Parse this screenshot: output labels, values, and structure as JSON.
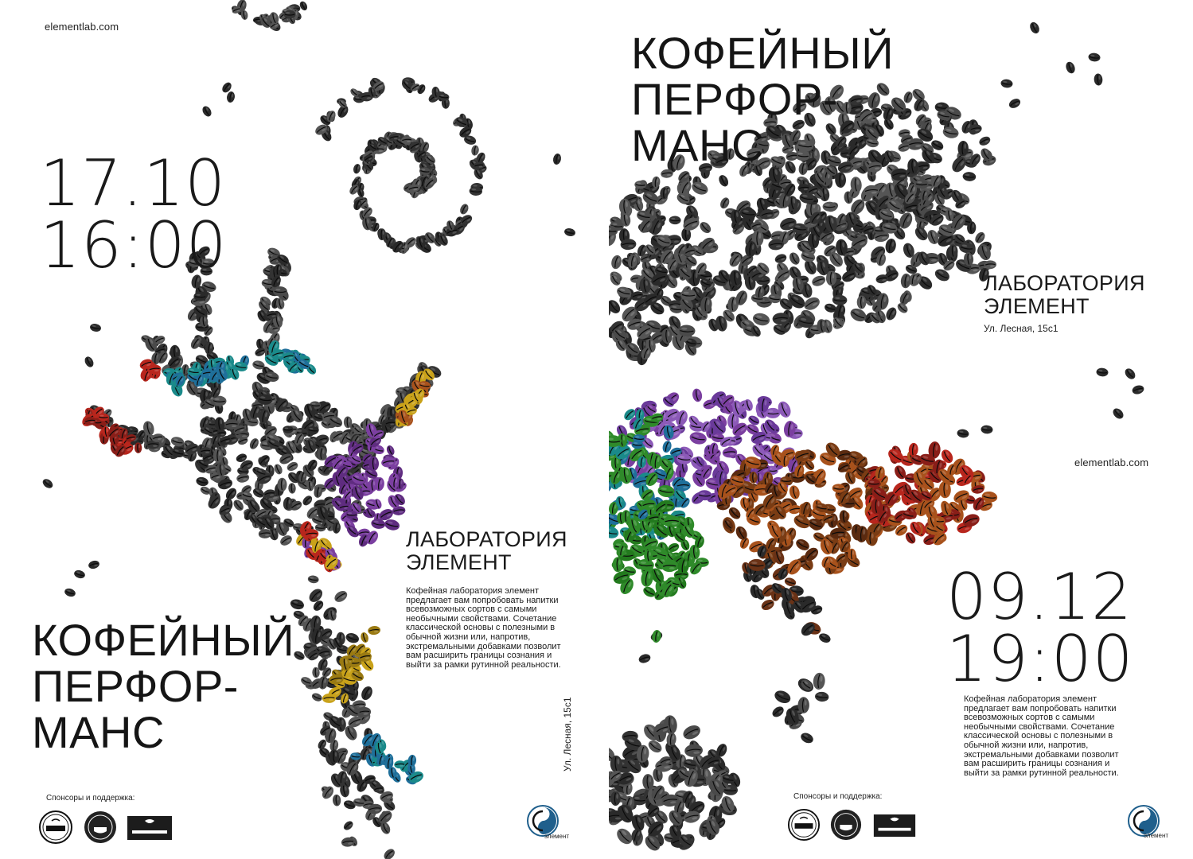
{
  "left_poster": {
    "url": "elementlab.com",
    "date": "17.10",
    "time": "16:00",
    "title_lines": [
      "КОФЕЙНЫЙ",
      "ПЕРФОР-",
      "МАНС"
    ],
    "lab_lines": [
      "ЛАБОРАТОРИЯ",
      "ЭЛЕМЕНТ"
    ],
    "description": "Кофейная лаборатория элемент предлагает вам попробовать напитки всевозможных сортов с самыми необычными свойствами. Сочетание классической основы с полезными в обычной жизни или, напротив, экстремальными добавками позволит вам расширить границы  сознания и выйти за рамки рутинной реальности.",
    "address": "Ул. Лесная, 15с1",
    "sponsors_label": "Спонсоры и поддержка:",
    "element_logo_text": "элемент"
  },
  "right_poster": {
    "url": "elementlab.com",
    "date": "09.12",
    "time": "19:00",
    "title_lines": [
      "КОФЕЙНЫЙ",
      "ПЕРФОР-",
      "МАНС"
    ],
    "lab_lines": [
      "ЛАБОРАТОРИЯ",
      "ЭЛЕМЕНТ"
    ],
    "address": "Ул. Лесная, 15с1",
    "description": "Кофейная лаборатория элемент предлагает вам попробовать напитки всевозможных сортов с самыми необычными свойствами. Сочетание классической основы с полезными в обычной жизни или, напротив, экстремальными добавками позволит вам расширить границы  сознания и выйти за рамки рутинной реальности.",
    "sponsors_label": "Спонсоры и поддержка:",
    "element_logo_text": "элемент"
  },
  "sponsor_logos": [
    "Coffee Festival",
    "COFFEESHOP",
    "COFFEESHOP"
  ],
  "colors": {
    "bean_dark": "#2a2a2a",
    "bean_mid": "#4a4a4a",
    "red": "#b8261d",
    "blue": "#1f6f9a",
    "teal": "#1a8a8a",
    "purple": "#7b3fa0",
    "yellow": "#c9a21a",
    "green": "#2f8a2a",
    "orange": "#a8521c",
    "logo_blue": "#1f5f8c"
  }
}
